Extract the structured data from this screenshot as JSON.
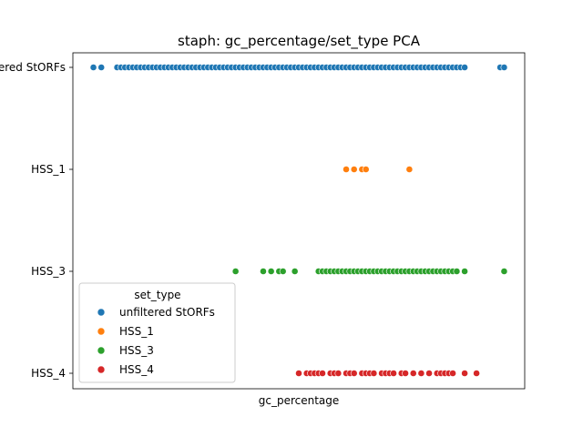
{
  "chart_data": {
    "type": "scatter",
    "title": "staph: gc_percentage/set_type PCA",
    "xlabel": "gc_percentage",
    "ylabel": "",
    "categories": [
      "unfiltered StORFs",
      "HSS_1",
      "HSS_3",
      "HSS_4"
    ],
    "grid": false,
    "legend": {
      "title": "set_type",
      "placement": "lower-left",
      "entries": [
        "unfiltered StORFs",
        "HSS_1",
        "HSS_3",
        "HSS_4"
      ]
    },
    "series": [
      {
        "name": "unfiltered StORFs",
        "category": "unfiltered StORFs",
        "color": "#1f77b4",
        "x": [
          0.02,
          0.04,
          0.08,
          0.09,
          0.1,
          0.11,
          0.12,
          0.13,
          0.14,
          0.15,
          0.16,
          0.17,
          0.18,
          0.19,
          0.2,
          0.21,
          0.22,
          0.23,
          0.24,
          0.25,
          0.26,
          0.27,
          0.28,
          0.29,
          0.3,
          0.31,
          0.32,
          0.33,
          0.34,
          0.35,
          0.36,
          0.37,
          0.38,
          0.39,
          0.4,
          0.41,
          0.42,
          0.43,
          0.44,
          0.45,
          0.46,
          0.47,
          0.48,
          0.49,
          0.5,
          0.51,
          0.52,
          0.53,
          0.54,
          0.55,
          0.56,
          0.57,
          0.58,
          0.59,
          0.6,
          0.61,
          0.62,
          0.63,
          0.64,
          0.65,
          0.66,
          0.67,
          0.68,
          0.69,
          0.7,
          0.71,
          0.72,
          0.73,
          0.74,
          0.75,
          0.76,
          0.77,
          0.78,
          0.79,
          0.8,
          0.81,
          0.82,
          0.83,
          0.84,
          0.85,
          0.86,
          0.87,
          0.88,
          0.89,
          0.9,
          0.91,
          0.92,
          0.93,
          0.94,
          0.95,
          0.96,
          1.05,
          1.06
        ]
      },
      {
        "name": "HSS_1",
        "category": "HSS_1",
        "color": "#ff7f0e",
        "x": [
          0.66,
          0.68,
          0.7,
          0.71,
          0.82
        ]
      },
      {
        "name": "HSS_3",
        "category": "HSS_3",
        "color": "#2ca02c",
        "x": [
          0.38,
          0.45,
          0.47,
          0.49,
          0.5,
          0.53,
          0.59,
          0.6,
          0.61,
          0.62,
          0.63,
          0.64,
          0.65,
          0.66,
          0.67,
          0.68,
          0.69,
          0.7,
          0.71,
          0.72,
          0.73,
          0.74,
          0.75,
          0.76,
          0.77,
          0.78,
          0.79,
          0.8,
          0.81,
          0.82,
          0.83,
          0.84,
          0.85,
          0.86,
          0.87,
          0.88,
          0.89,
          0.9,
          0.91,
          0.92,
          0.93,
          0.94,
          0.96,
          1.06
        ]
      },
      {
        "name": "HSS_4",
        "category": "HSS_4",
        "color": "#d62728",
        "x": [
          0.54,
          0.56,
          0.57,
          0.58,
          0.59,
          0.6,
          0.62,
          0.63,
          0.64,
          0.66,
          0.67,
          0.68,
          0.7,
          0.71,
          0.72,
          0.73,
          0.75,
          0.76,
          0.77,
          0.78,
          0.8,
          0.81,
          0.83,
          0.85,
          0.87,
          0.89,
          0.9,
          0.91,
          0.92,
          0.93,
          0.96,
          0.99
        ]
      }
    ],
    "ylim": [
      "unfiltered StORFs",
      "HSS_4"
    ]
  }
}
